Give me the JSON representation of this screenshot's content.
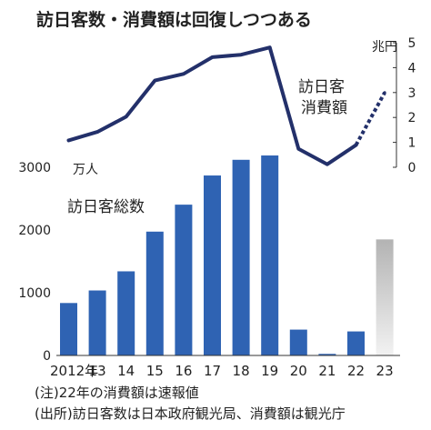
{
  "chart_data": {
    "type": "bar+line",
    "title": "訪日客数・消費額は回復しつつある",
    "categories": [
      "2012年",
      "13",
      "14",
      "15",
      "16",
      "17",
      "18",
      "19",
      "20",
      "21",
      "22",
      "23"
    ],
    "bar_series": {
      "name": "訪日客総数",
      "unit": "万人",
      "values": [
        836,
        1036,
        1341,
        1974,
        2404,
        2869,
        3119,
        3188,
        412,
        25,
        383,
        1850
      ],
      "ylim": [
        0,
        3300
      ],
      "ticks": [
        "0",
        "1000",
        "2000",
        "3000"
      ],
      "tick_values": [
        0,
        1000,
        2000,
        3000
      ],
      "estimated_last": true
    },
    "line_series": {
      "name_line1": "訪日客",
      "name_line2": "消費額",
      "unit": "兆円",
      "values": [
        1.08,
        1.42,
        2.03,
        3.48,
        3.75,
        4.42,
        4.52,
        4.81,
        0.74,
        0.12,
        0.89,
        3.0
      ],
      "ylim": [
        0,
        5
      ],
      "ticks": [
        "0",
        "1",
        "2",
        "3",
        "4",
        "5"
      ],
      "tick_values": [
        0,
        1,
        2,
        3,
        4,
        5
      ],
      "preliminary_from_index": 10
    },
    "colors": {
      "bar": "#2f63b3",
      "line": "#23306a",
      "estimate_bar_top": "#b3b3b3",
      "estimate_bar_bottom": "#f2f2f2"
    }
  },
  "notes": {
    "note1": "(注)22年の消費額は速報値",
    "note2": "(出所)訪日客数は日本政府観光局、消費額は観光庁"
  }
}
